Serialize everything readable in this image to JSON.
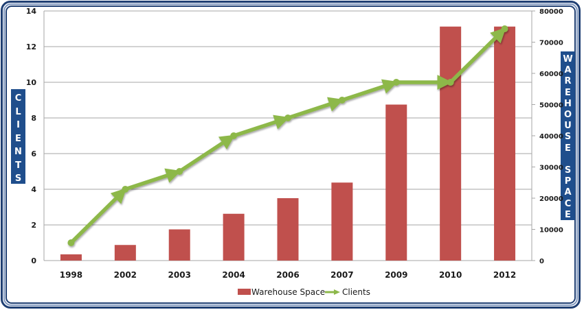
{
  "chart_data": {
    "type": "bar+line",
    "title": "",
    "categories": [
      "1998",
      "2002",
      "2003",
      "2004",
      "2006",
      "2007",
      "2009",
      "2010",
      "2012"
    ],
    "series": [
      {
        "name": "Warehouse Space",
        "type": "bar",
        "axis": "right",
        "color": "#c0504d",
        "values": [
          2000,
          5000,
          10000,
          15000,
          20000,
          25000,
          50000,
          75000,
          75000
        ]
      },
      {
        "name": "Clients",
        "type": "line",
        "axis": "left",
        "color": "#8db84a",
        "values": [
          1,
          4,
          5,
          7,
          8,
          9,
          10,
          10,
          13
        ]
      }
    ],
    "ylabel_left": "CLIENTS",
    "ylabel_right": "WAREHOUSE SPACE",
    "ylim_left": [
      0,
      14
    ],
    "ylim_right": [
      0,
      80000
    ],
    "yticks_left": [
      "0",
      "2",
      "4",
      "6",
      "8",
      "10",
      "12",
      "14"
    ],
    "yticks_right": [
      "0",
      "10000",
      "20000",
      "30000",
      "40000",
      "50000",
      "60000",
      "70000",
      "80000"
    ],
    "grid": true,
    "legend_position": "bottom"
  },
  "axis_titles": {
    "left_letters": [
      "C",
      "L",
      "I",
      "E",
      "N",
      "T",
      "S"
    ],
    "right_letters": [
      "W",
      "A",
      "R",
      "E",
      "H",
      "O",
      "U",
      "S",
      "E",
      "",
      "S",
      "P",
      "A",
      "C",
      "E"
    ]
  },
  "legend": {
    "items": [
      {
        "label": "Warehouse Space",
        "icon": "bar-swatch",
        "color": "#c0504d"
      },
      {
        "label": "Clients",
        "icon": "arrow-line",
        "color": "#8db84a"
      }
    ]
  },
  "colors": {
    "frame_dark": "#1f3f73",
    "frame_light": "#7e96bd",
    "axis_title_bg": "#1f4e8c",
    "gridline": "#a6a6a6"
  }
}
